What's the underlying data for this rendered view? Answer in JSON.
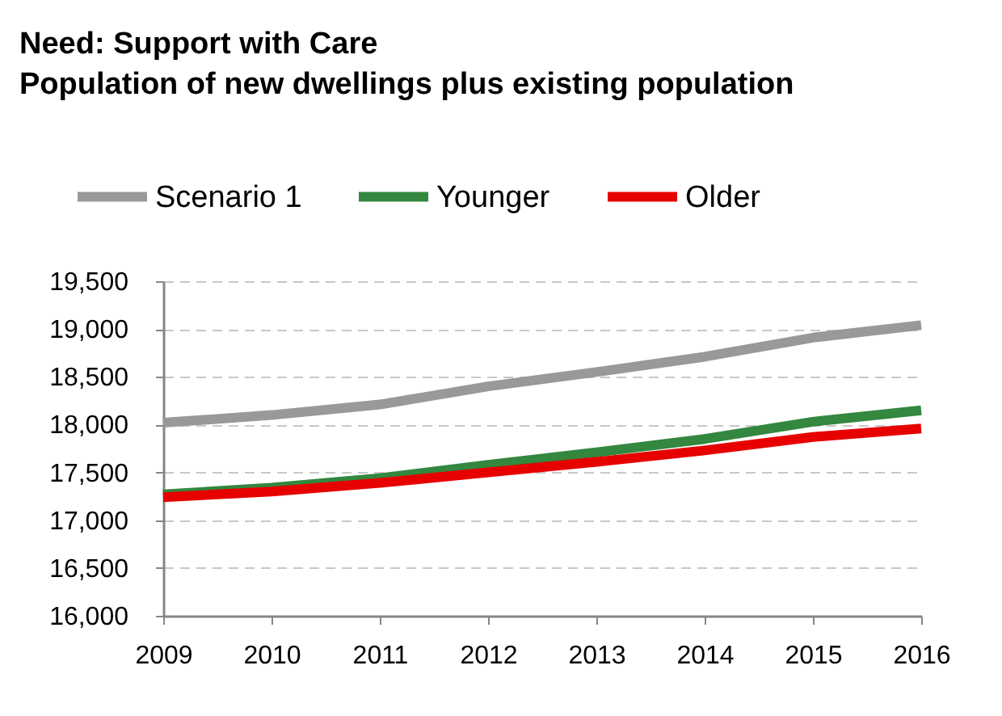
{
  "chart_data": {
    "type": "line",
    "title": "Need: Support with Care",
    "subtitle": "Population of new dwellings plus existing population",
    "categories": [
      "2009",
      "2010",
      "2011",
      "2012",
      "2013",
      "2014",
      "2015",
      "2016"
    ],
    "series": [
      {
        "name": "Scenario 1",
        "color": "#999999",
        "values": [
          18020,
          18100,
          18210,
          18400,
          18550,
          18710,
          18910,
          19040
        ]
      },
      {
        "name": "Younger",
        "color": "#33873f",
        "values": [
          17270,
          17340,
          17440,
          17580,
          17710,
          17850,
          18030,
          18150
        ]
      },
      {
        "name": "Older",
        "color": "#e60000",
        "values": [
          17240,
          17300,
          17390,
          17500,
          17610,
          17730,
          17870,
          17960
        ]
      }
    ],
    "ylim": [
      16000,
      19500
    ],
    "yticks": [
      {
        "value": 16000,
        "label": "16,000"
      },
      {
        "value": 16500,
        "label": "16,500"
      },
      {
        "value": 17000,
        "label": "17,000"
      },
      {
        "value": 17500,
        "label": "17,500"
      },
      {
        "value": 18000,
        "label": "18,000"
      },
      {
        "value": 18500,
        "label": "18,500"
      },
      {
        "value": 19000,
        "label": "19,000"
      },
      {
        "value": 19500,
        "label": "19,500"
      }
    ],
    "grid": "y",
    "legend": "top left"
  }
}
